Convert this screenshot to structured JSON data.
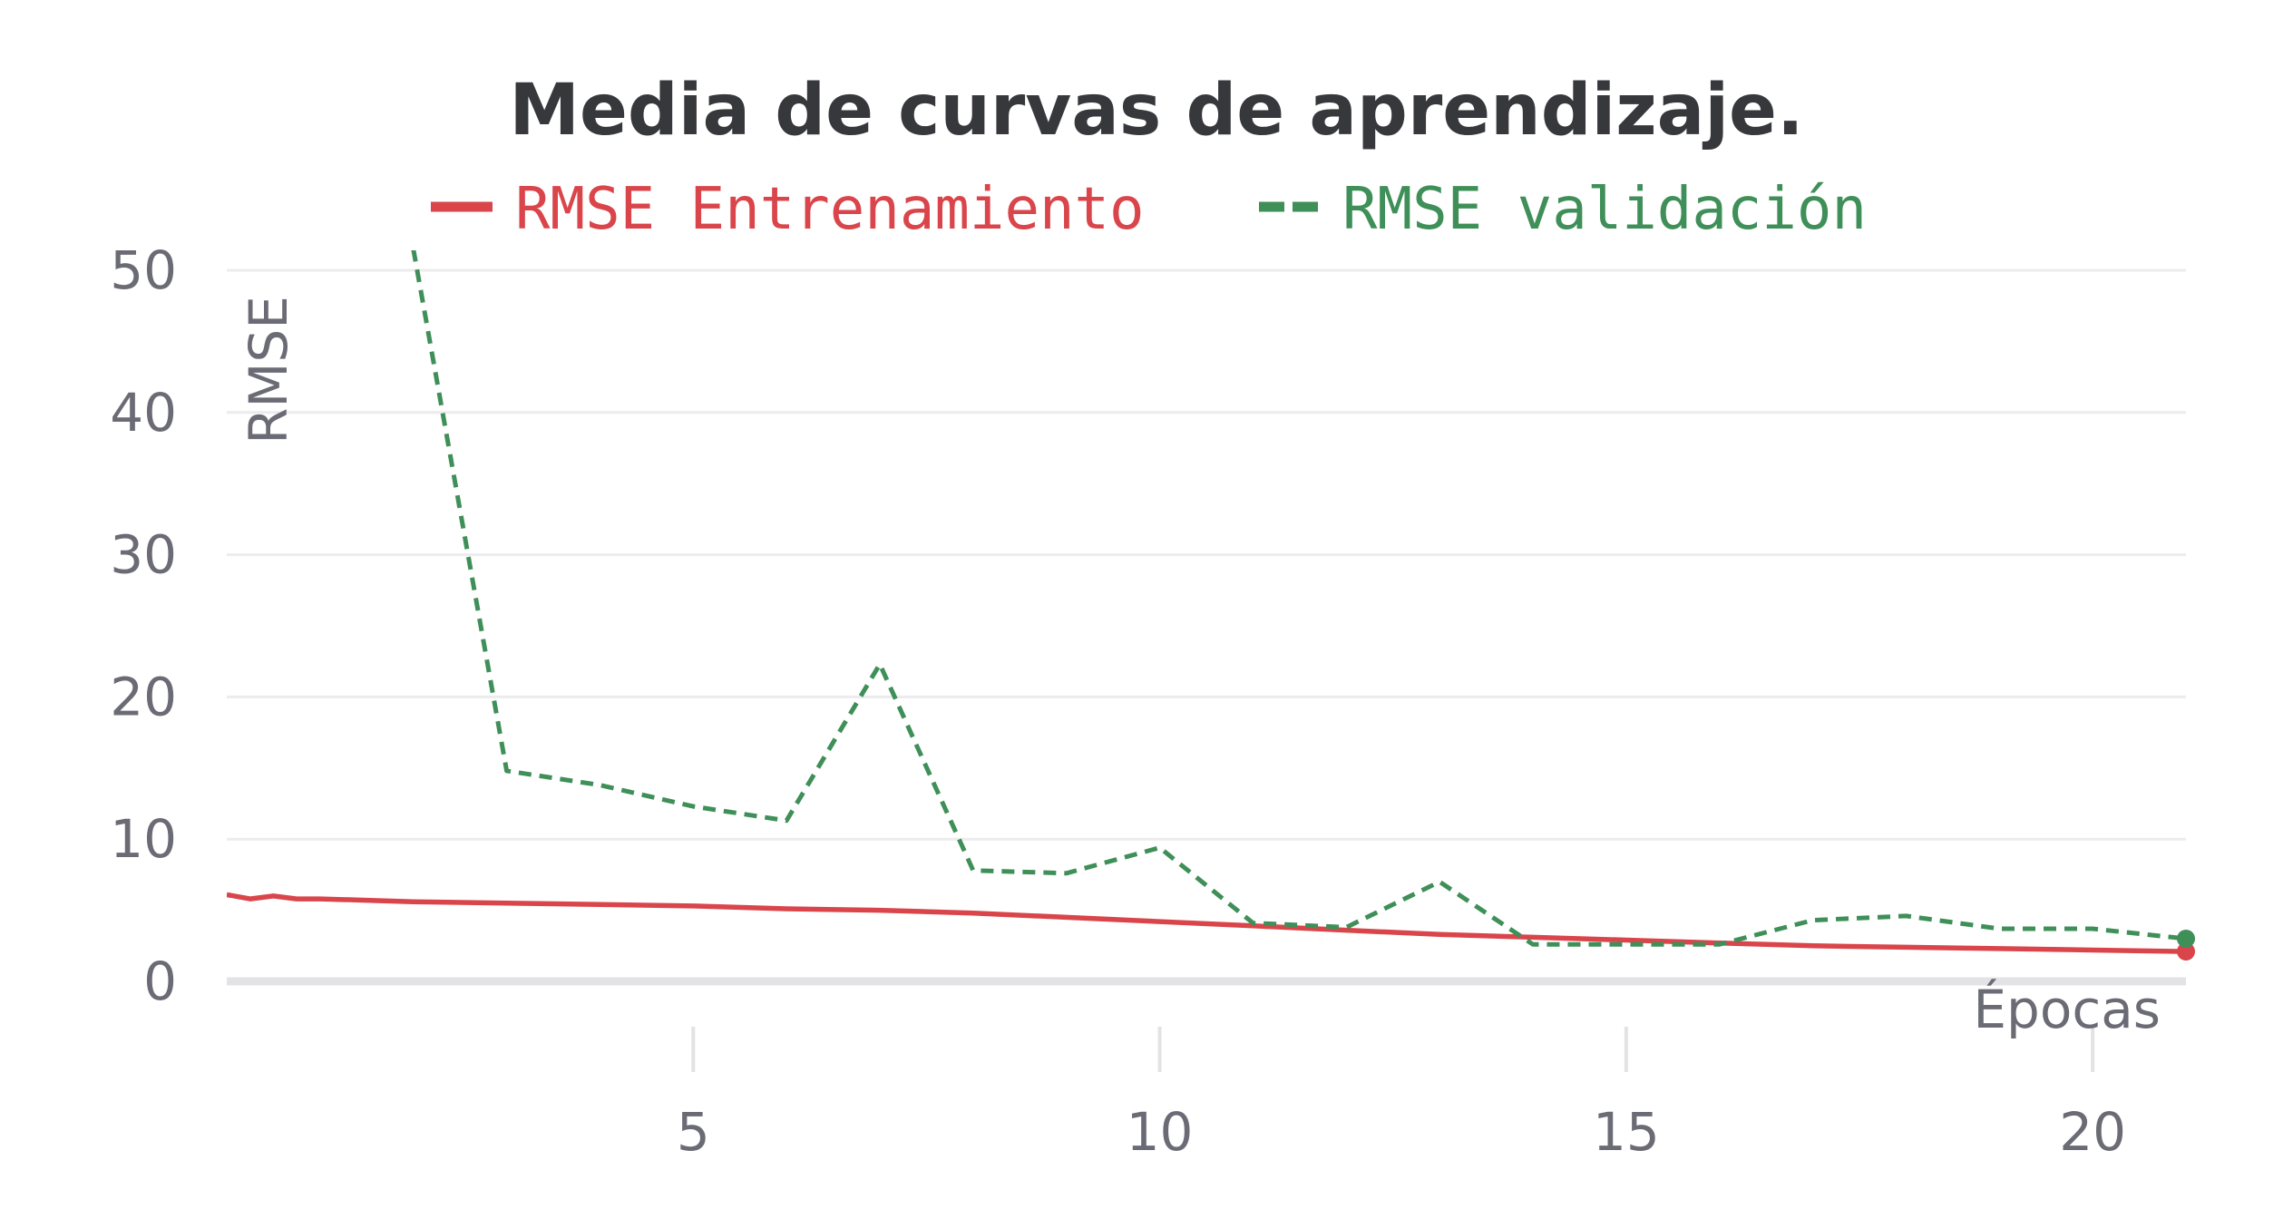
{
  "chart_data": {
    "type": "line",
    "title": "Media de curvas de aprendizaje.",
    "xlabel": "Épocas",
    "ylabel": "RMSE",
    "xlim": [
      0,
      21
    ],
    "ylim": [
      0,
      50
    ],
    "xticks": [
      5,
      10,
      15,
      20
    ],
    "yticks": [
      0,
      10,
      20,
      30,
      40,
      50
    ],
    "grid": "horizontal",
    "legend_position": "top",
    "series": [
      {
        "name": "RMSE Entrenamiento",
        "color": "#d9454a",
        "style": "solid",
        "x": [
          0,
          0.25,
          0.5,
          0.75,
          1,
          1.5,
          2,
          3,
          4,
          5,
          6,
          7,
          8,
          9,
          10,
          11,
          12,
          13,
          14,
          15,
          16,
          17,
          18,
          19,
          20,
          21
        ],
        "y": [
          6.1,
          5.8,
          6.0,
          5.8,
          5.8,
          5.7,
          5.6,
          5.5,
          5.4,
          5.3,
          5.1,
          5.0,
          4.8,
          4.5,
          4.2,
          3.9,
          3.6,
          3.3,
          3.1,
          2.9,
          2.7,
          2.5,
          2.4,
          2.3,
          2.2,
          2.1
        ]
      },
      {
        "name": "RMSE validación",
        "color": "#3f8f58",
        "style": "dashed",
        "x": [
          2,
          3,
          4,
          5,
          6,
          7,
          8,
          9,
          10,
          11,
          12,
          13,
          14,
          15,
          16,
          17,
          18,
          19,
          20,
          21
        ],
        "y": [
          51.5,
          14.8,
          13.8,
          12.3,
          11.3,
          22.3,
          7.8,
          7.6,
          9.4,
          4.1,
          3.8,
          7.0,
          2.6,
          2.6,
          2.6,
          4.3,
          4.6,
          3.7,
          3.7,
          3.0
        ]
      }
    ]
  }
}
